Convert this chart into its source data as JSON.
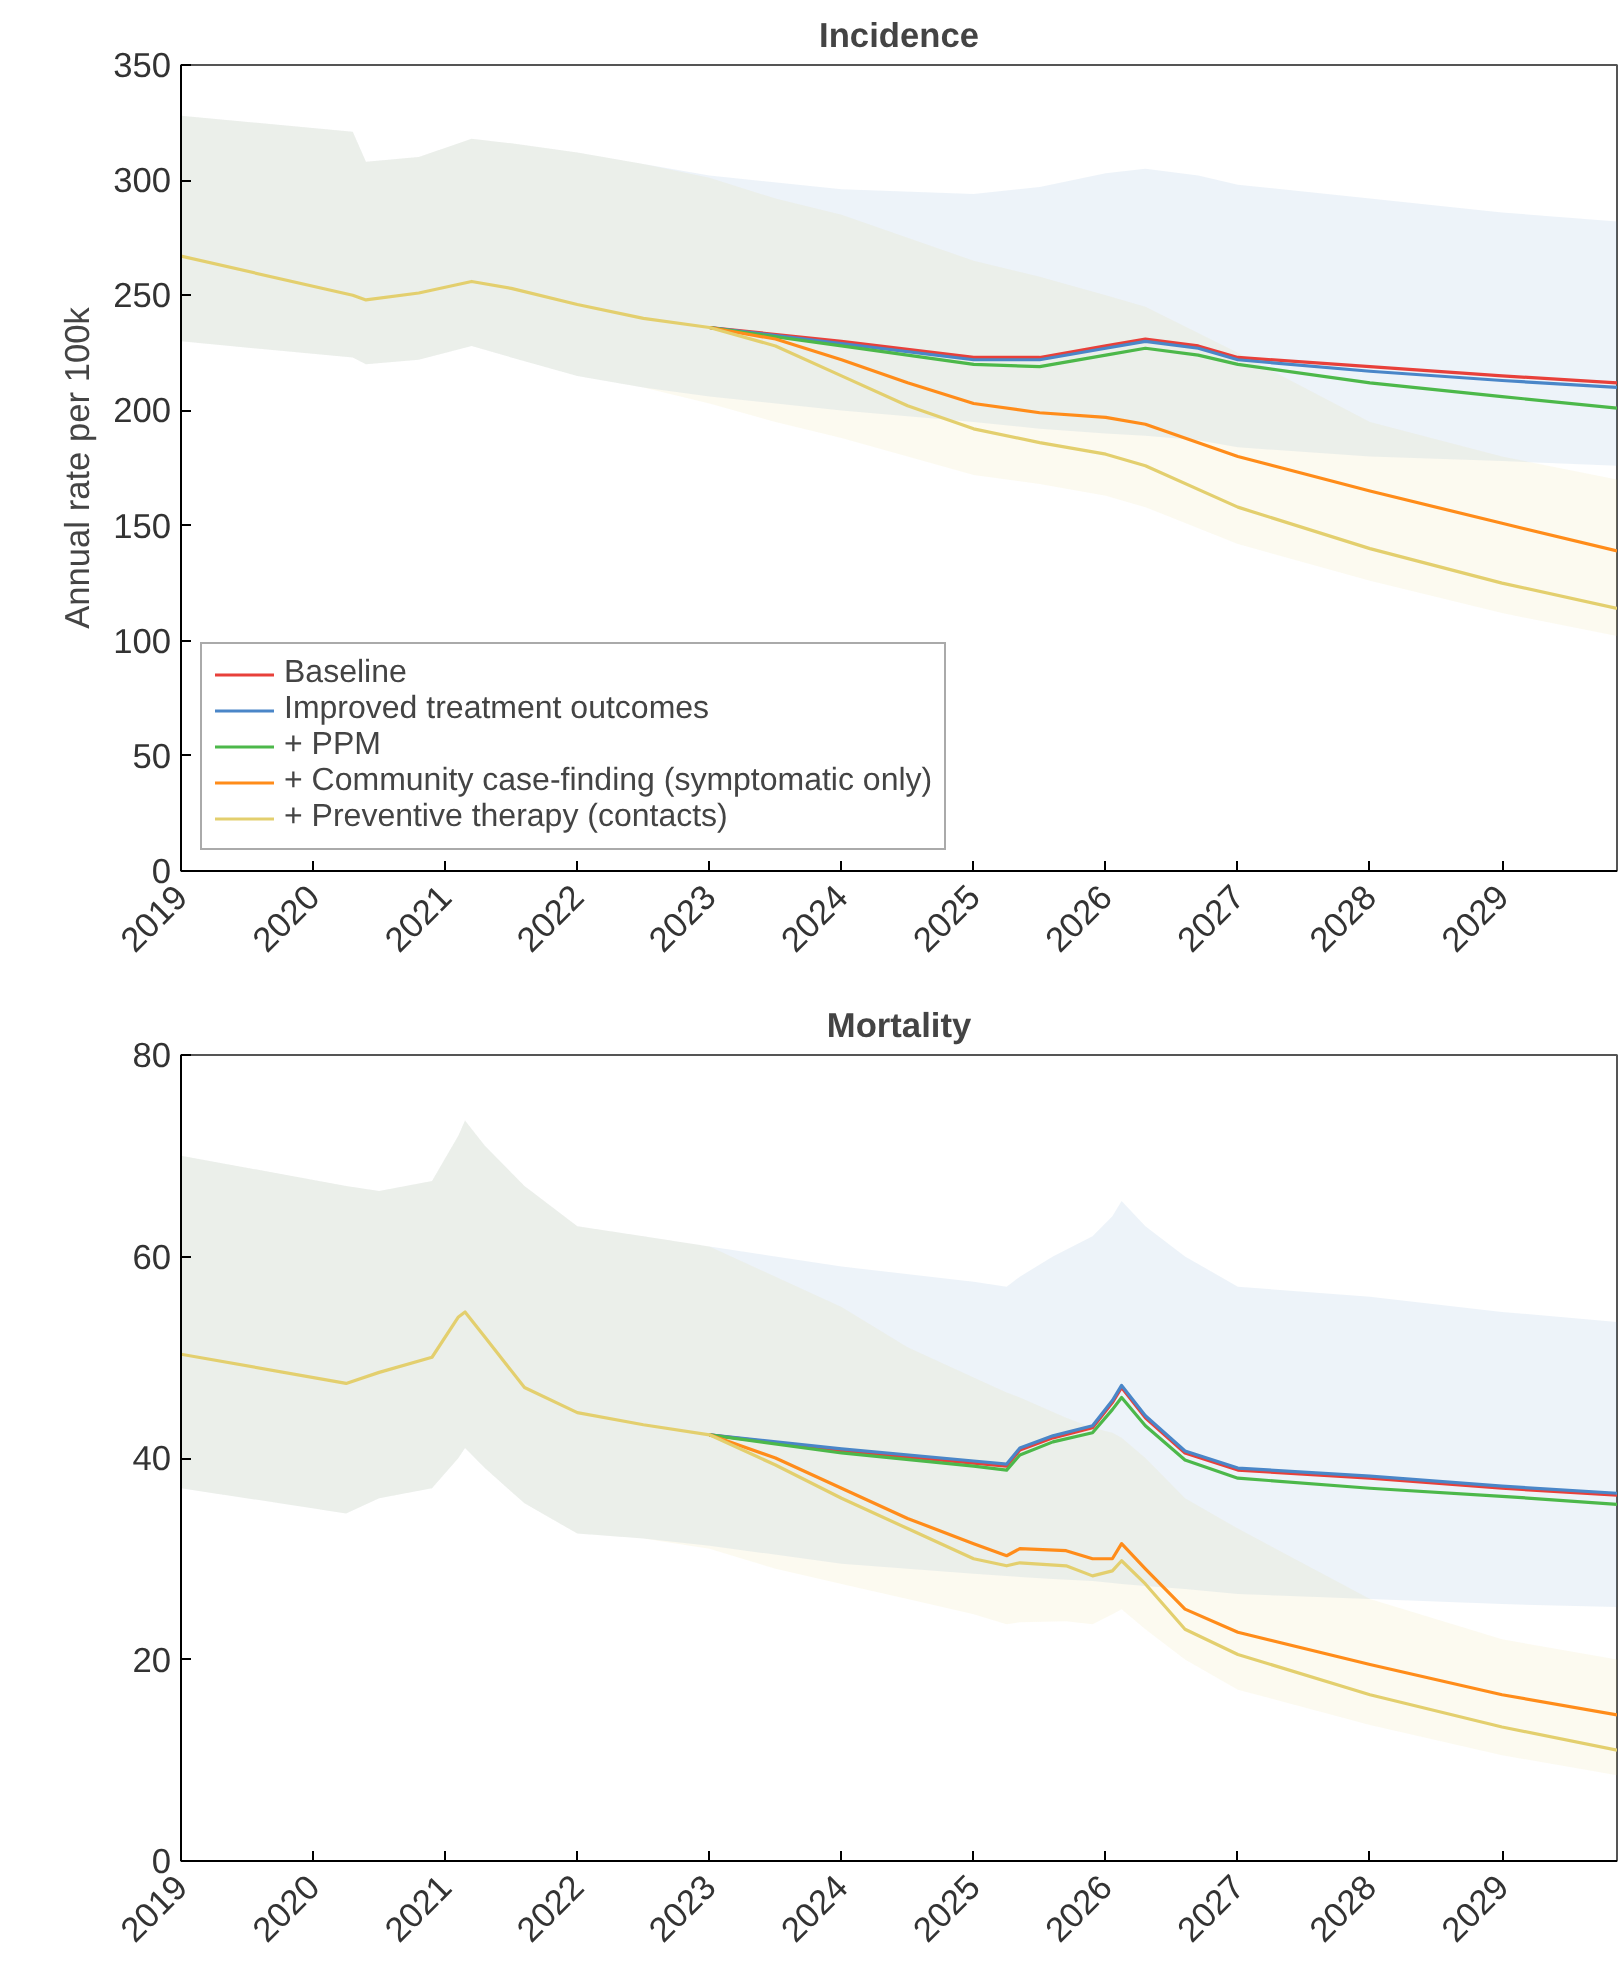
{
  "chart_data": [
    {
      "type": "line",
      "title": "Incidence",
      "ylabel": "Annual rate per 100k",
      "xlim": [
        2019,
        2029.87
      ],
      "ylim": [
        0,
        350
      ],
      "xticks": [
        2019,
        2020,
        2021,
        2022,
        2023,
        2024,
        2025,
        2026,
        2027,
        2028,
        2029
      ],
      "yticks": [
        0,
        50,
        100,
        150,
        200,
        250,
        300,
        350
      ],
      "grid": false,
      "legend": "bottom left",
      "line_style": "solid",
      "marker": "none",
      "series": [
        {
          "name": "Baseline",
          "color": "#e8403a",
          "x": [
            2023,
            2024,
            2025,
            2025.5,
            2026,
            2026.3,
            2026.7,
            2027,
            2028,
            2029,
            2029.87
          ],
          "values": [
            236,
            230,
            223,
            223,
            228,
            231,
            228,
            223,
            219,
            215,
            212
          ]
        },
        {
          "name": "Improved treatment outcomes",
          "color": "#4a86c8",
          "x": [
            2019,
            2020.3,
            2020.4,
            2020.8,
            2021.2,
            2021.5,
            2022,
            2022.5,
            2023,
            2024,
            2025,
            2025.5,
            2026,
            2026.3,
            2026.7,
            2027,
            2028,
            2029,
            2029.87
          ],
          "values": [
            null,
            null,
            null,
            null,
            null,
            null,
            null,
            null,
            236,
            229,
            222,
            222,
            227,
            230,
            227,
            222,
            217,
            213,
            210
          ],
          "upper": [
            328,
            321,
            308,
            310,
            318,
            316,
            312,
            307,
            302,
            296,
            294,
            297,
            303,
            305,
            302,
            298,
            292,
            286,
            282
          ],
          "lower": [
            230,
            223,
            220,
            222,
            228,
            223,
            215,
            210,
            206,
            200,
            195,
            192,
            190,
            189,
            187,
            184,
            180,
            178,
            176
          ]
        },
        {
          "name": "+ PPM",
          "color": "#4cb84a",
          "x": [
            2023,
            2024,
            2025,
            2025.5,
            2026,
            2026.3,
            2026.7,
            2027,
            2028,
            2029,
            2029.87
          ],
          "values": [
            236,
            228,
            220,
            219,
            224,
            227,
            224,
            220,
            212,
            206,
            201
          ]
        },
        {
          "name": "+ Community case-finding (symptomatic only)",
          "color": "#ff8c1a",
          "x": [
            2023,
            2023.5,
            2024,
            2024.5,
            2025,
            2025.5,
            2026,
            2026.3,
            2027,
            2028,
            2029,
            2029.87
          ],
          "values": [
            236,
            231,
            222,
            212,
            203,
            199,
            197,
            194,
            180,
            165,
            151,
            139
          ]
        },
        {
          "name": "+ Preventive therapy (contacts)",
          "color": "#e3cf6e",
          "x": [
            2019,
            2020.3,
            2020.4,
            2020.8,
            2021.2,
            2021.5,
            2022,
            2022.5,
            2023,
            2023.5,
            2024,
            2024.5,
            2025,
            2025.5,
            2026,
            2026.3,
            2027,
            2028,
            2029,
            2029.87
          ],
          "values": [
            267,
            250,
            248,
            251,
            256,
            253,
            246,
            240,
            236,
            228,
            215,
            202,
            192,
            186,
            181,
            176,
            158,
            140,
            125,
            114
          ],
          "upper": [
            328,
            321,
            308,
            310,
            318,
            316,
            312,
            307,
            301,
            292,
            285,
            275,
            265,
            258,
            250,
            245,
            225,
            195,
            180,
            170
          ],
          "lower": [
            230,
            223,
            220,
            222,
            228,
            223,
            215,
            210,
            203,
            195,
            188,
            180,
            172,
            168,
            163,
            158,
            142,
            126,
            112,
            102
          ]
        }
      ]
    },
    {
      "type": "line",
      "title": "Mortality",
      "xlim": [
        2019,
        2029.87
      ],
      "ylim": [
        0,
        80
      ],
      "xticks": [
        2019,
        2020,
        2021,
        2022,
        2023,
        2024,
        2025,
        2026,
        2027,
        2028,
        2029
      ],
      "yticks": [
        0,
        20,
        40,
        60,
        80
      ],
      "grid": false,
      "line_style": "solid",
      "marker": "none",
      "series": [
        {
          "color": "#e8403a",
          "x": [
            2023,
            2024,
            2025,
            2025.25,
            2025.35,
            2025.6,
            2025.9,
            2026.05,
            2026.12,
            2026.3,
            2026.6,
            2027,
            2028,
            2029,
            2029.87
          ],
          "values": [
            42.3,
            40.7,
            39.5,
            39.2,
            40.8,
            42,
            43,
            45.5,
            47,
            44,
            40.5,
            38.8,
            38,
            37,
            36.3
          ]
        },
        {
          "color": "#4a86c8",
          "x": [
            2019,
            2020.25,
            2020.5,
            2020.9,
            2021.1,
            2021.15,
            2021.3,
            2021.6,
            2022,
            2022.5,
            2023,
            2024,
            2025,
            2025.25,
            2025.35,
            2025.6,
            2025.9,
            2026.05,
            2026.12,
            2026.3,
            2026.6,
            2027,
            2028,
            2029,
            2029.87
          ],
          "values": [
            null,
            null,
            null,
            null,
            null,
            null,
            null,
            null,
            null,
            null,
            42.3,
            40.9,
            39.7,
            39.4,
            41,
            42.2,
            43.2,
            45.7,
            47.2,
            44.2,
            40.7,
            39,
            38.2,
            37.2,
            36.5
          ],
          "upper": [
            70,
            67,
            66.5,
            67.5,
            72,
            73.5,
            71,
            67,
            63,
            62,
            61,
            59,
            57.5,
            57,
            58,
            60,
            62,
            64,
            65.5,
            63,
            60,
            57,
            56,
            54.5,
            53.5
          ],
          "lower": [
            37,
            34.5,
            36,
            37,
            40,
            41,
            39,
            35.5,
            32.5,
            32,
            31.3,
            29.5,
            28.5,
            28.3,
            28.2,
            28,
            27.8,
            27.6,
            27.5,
            27.3,
            27,
            26.5,
            26,
            25.5,
            25.2
          ]
        },
        {
          "color": "#4cb84a",
          "x": [
            2023,
            2024,
            2025,
            2025.25,
            2025.35,
            2025.6,
            2025.9,
            2026.05,
            2026.12,
            2026.3,
            2026.6,
            2027,
            2028,
            2029,
            2029.87
          ],
          "values": [
            42.3,
            40.5,
            39.2,
            38.8,
            40.3,
            41.6,
            42.5,
            44.8,
            46,
            43.2,
            39.8,
            38,
            37,
            36.2,
            35.4
          ]
        },
        {
          "color": "#ff8c1a",
          "x": [
            2023,
            2023.5,
            2024,
            2024.5,
            2025,
            2025.25,
            2025.35,
            2025.7,
            2025.9,
            2026.05,
            2026.12,
            2026.3,
            2026.6,
            2027,
            2028,
            2029,
            2029.87
          ],
          "values": [
            42.3,
            40,
            37,
            34,
            31.5,
            30.3,
            31,
            30.8,
            30,
            30,
            31.5,
            29,
            25,
            22.7,
            19.5,
            16.5,
            14.5
          ]
        },
        {
          "color": "#e3cf6e",
          "x": [
            2019,
            2020.25,
            2020.5,
            2020.9,
            2021.1,
            2021.15,
            2021.3,
            2021.6,
            2022,
            2022.5,
            2023,
            2023.5,
            2024,
            2024.5,
            2025,
            2025.25,
            2025.35,
            2025.7,
            2025.9,
            2026.05,
            2026.12,
            2026.3,
            2026.6,
            2027,
            2028,
            2029,
            2029.87
          ],
          "values": [
            50.3,
            47.4,
            48.5,
            50,
            54,
            54.5,
            52,
            47,
            44.5,
            43.3,
            42.3,
            39.3,
            36,
            33,
            30,
            29.3,
            29.6,
            29.3,
            28.3,
            28.8,
            29.8,
            27.5,
            23,
            20.5,
            16.5,
            13.3,
            11
          ],
          "upper": [
            70,
            67,
            66.5,
            67.5,
            72,
            73.5,
            71,
            67,
            63,
            62,
            61,
            58,
            55,
            51,
            48,
            46.5,
            46,
            44,
            43,
            42.5,
            42,
            40,
            36,
            33,
            26,
            22,
            20
          ],
          "lower": [
            37,
            34.5,
            36,
            37,
            40,
            41,
            39,
            35.5,
            32.5,
            32,
            31,
            29,
            27.5,
            26,
            24.5,
            23.5,
            23.7,
            23.8,
            23.5,
            24.5,
            25,
            23,
            20,
            17,
            13.5,
            10.5,
            8.5
          ]
        }
      ]
    }
  ]
}
